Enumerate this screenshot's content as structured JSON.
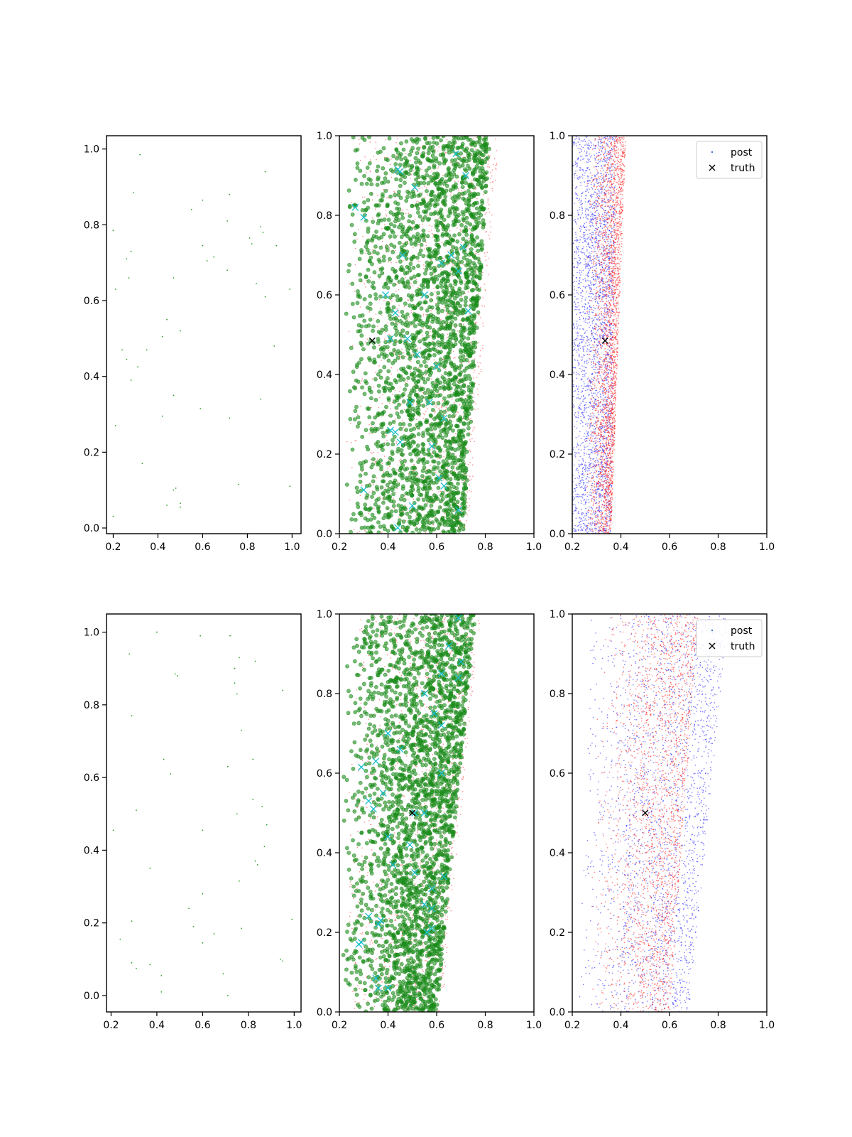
{
  "chart_data": [
    {
      "id": "r1c1",
      "type": "scatter",
      "xlim": [
        0.17,
        1.04
      ],
      "ylim": [
        -0.015,
        1.035
      ],
      "xticks": [
        "0.2",
        "0.4",
        "0.6",
        "0.8",
        "1.0"
      ],
      "yticks": [
        "0.0",
        "0.2",
        "0.4",
        "0.6",
        "0.8",
        "1.0"
      ],
      "xtick_values": [
        0.2,
        0.4,
        0.6,
        0.8,
        1.0
      ],
      "ytick_values": [
        0.0,
        0.2,
        0.4,
        0.6,
        0.8,
        1.0
      ],
      "series": [
        {
          "color": "#2ca02c",
          "marker": "dot",
          "points": [
            [
              0.32,
              0.985
            ],
            [
              0.29,
              0.885
            ],
            [
              0.6,
              0.865
            ],
            [
              0.72,
              0.88
            ],
            [
              0.88,
              0.94
            ],
            [
              0.2,
              0.785
            ],
            [
              0.55,
              0.84
            ],
            [
              0.71,
              0.81
            ],
            [
              0.81,
              0.765
            ],
            [
              0.86,
              0.795
            ],
            [
              0.87,
              0.78
            ],
            [
              0.93,
              0.745
            ],
            [
              0.28,
              0.73
            ],
            [
              0.26,
              0.71
            ],
            [
              0.6,
              0.745
            ],
            [
              0.65,
              0.715
            ],
            [
              0.62,
              0.705
            ],
            [
              0.71,
              0.68
            ],
            [
              0.82,
              0.75
            ],
            [
              0.27,
              0.66
            ],
            [
              0.47,
              0.66
            ],
            [
              0.21,
              0.63
            ],
            [
              0.84,
              0.645
            ],
            [
              0.88,
              0.61
            ],
            [
              0.99,
              0.63
            ],
            [
              0.44,
              0.55
            ],
            [
              0.42,
              0.505
            ],
            [
              0.5,
              0.52
            ],
            [
              0.24,
              0.47
            ],
            [
              0.35,
              0.47
            ],
            [
              0.26,
              0.445
            ],
            [
              0.31,
              0.425
            ],
            [
              0.92,
              0.48
            ],
            [
              0.28,
              0.39
            ],
            [
              0.47,
              0.35
            ],
            [
              0.59,
              0.315
            ],
            [
              0.86,
              0.34
            ],
            [
              0.21,
              0.27
            ],
            [
              0.42,
              0.295
            ],
            [
              0.72,
              0.29
            ],
            [
              0.33,
              0.17
            ],
            [
              0.47,
              0.1
            ],
            [
              0.48,
              0.105
            ],
            [
              0.76,
              0.115
            ],
            [
              0.99,
              0.11
            ],
            [
              0.44,
              0.06
            ],
            [
              0.5,
              0.065
            ],
            [
              0.5,
              0.055
            ],
            [
              0.2,
              0.03
            ]
          ]
        }
      ]
    },
    {
      "id": "r1c2",
      "type": "scatter",
      "xlim": [
        0.2,
        1.0
      ],
      "ylim": [
        0.0,
        1.0
      ],
      "xticks": [
        "0.2",
        "0.4",
        "0.6",
        "0.8",
        "1.0"
      ],
      "yticks": [
        "0.0",
        "0.2",
        "0.4",
        "0.6",
        "0.8",
        "1.0"
      ],
      "xtick_values": [
        0.2,
        0.4,
        0.6,
        0.8,
        1.0
      ],
      "ytick_values": [
        0.0,
        0.2,
        0.4,
        0.6,
        0.8,
        1.0
      ],
      "series": [
        {
          "color": "#ff4040",
          "marker": "dot-small",
          "cloud": {
            "count": 1400,
            "xmin_bottom": 0.22,
            "xmin_top": 0.24,
            "xmax_bottom": 0.73,
            "xmax_top": 0.86,
            "skew": 0.55,
            "seed": 11
          }
        },
        {
          "color": "#1a8c1a",
          "marker": "circle",
          "cloud": {
            "count": 2600,
            "xmin_bottom": 0.22,
            "xmin_top": 0.22,
            "xmax_bottom": 0.71,
            "xmax_top": 0.82,
            "skew": 0.6,
            "seed": 23
          }
        },
        {
          "color": "#17becf",
          "marker": "x",
          "points": [
            [
              0.265,
              0.82
            ],
            [
              0.3,
              0.795
            ],
            [
              0.44,
              0.915
            ],
            [
              0.45,
              0.91
            ],
            [
              0.68,
              0.955
            ],
            [
              0.72,
              0.9
            ],
            [
              0.51,
              0.87
            ],
            [
              0.46,
              0.7
            ],
            [
              0.62,
              0.68
            ],
            [
              0.66,
              0.7
            ],
            [
              0.69,
              0.66
            ],
            [
              0.71,
              0.72
            ],
            [
              0.73,
              0.56
            ],
            [
              0.43,
              0.555
            ],
            [
              0.55,
              0.6
            ],
            [
              0.41,
              0.49
            ],
            [
              0.48,
              0.49
            ],
            [
              0.52,
              0.45
            ],
            [
              0.6,
              0.42
            ],
            [
              0.49,
              0.33
            ],
            [
              0.57,
              0.33
            ],
            [
              0.63,
              0.29
            ],
            [
              0.41,
              0.26
            ],
            [
              0.43,
              0.255
            ],
            [
              0.45,
              0.23
            ],
            [
              0.58,
              0.22
            ],
            [
              0.61,
              0.14
            ],
            [
              0.63,
              0.12
            ],
            [
              0.3,
              0.11
            ],
            [
              0.44,
              0.015
            ],
            [
              0.69,
              0.06
            ],
            [
              0.5,
              0.07
            ],
            [
              0.39,
              0.6
            ]
          ]
        },
        {
          "color": "#000000",
          "marker": "x-truth",
          "points": [
            [
              0.335,
              0.485
            ]
          ]
        }
      ]
    },
    {
      "id": "r1c3",
      "type": "scatter",
      "xlim": [
        0.2,
        1.0
      ],
      "ylim": [
        0.0,
        1.0
      ],
      "xticks": [
        "0.2",
        "0.4",
        "0.6",
        "0.8",
        "1.0"
      ],
      "yticks": [
        "0.0",
        "0.2",
        "0.4",
        "0.6",
        "0.8",
        "1.0"
      ],
      "xtick_values": [
        0.2,
        0.4,
        0.6,
        0.8,
        1.0
      ],
      "ytick_values": [
        0.0,
        0.2,
        0.4,
        0.6,
        0.8,
        1.0
      ],
      "legend": {
        "placement": "upper-right",
        "entries": [
          "post",
          "truth"
        ],
        "colors": [
          "#3b6fd6",
          "#000000"
        ]
      },
      "series": [
        {
          "color": "#2020ff",
          "marker": "dot-small",
          "cloud": {
            "count": 2600,
            "xmin_bottom": 0.2,
            "xmin_top": 0.2,
            "xmax_bottom": 0.36,
            "xmax_top": 0.38,
            "skew": 0.2,
            "seed": 37
          }
        },
        {
          "color": "#ff2020",
          "marker": "dot-small",
          "cloud": {
            "count": 2600,
            "xmin_bottom": 0.25,
            "xmin_top": 0.26,
            "xmax_bottom": 0.36,
            "xmax_top": 0.42,
            "skew": 0.75,
            "seed": 41
          }
        },
        {
          "color": "#000000",
          "marker": "x-truth",
          "points": [
            [
              0.335,
              0.485
            ]
          ]
        }
      ]
    },
    {
      "id": "r2c1",
      "type": "scatter",
      "xlim": [
        0.18,
        1.03
      ],
      "ylim": [
        -0.045,
        1.05
      ],
      "xticks": [
        "0.2",
        "0.4",
        "0.6",
        "0.8",
        "1.0"
      ],
      "yticks": [
        "0.0",
        "0.2",
        "0.4",
        "0.6",
        "0.8",
        "1.0"
      ],
      "xtick_values": [
        0.2,
        0.4,
        0.6,
        0.8,
        1.0
      ],
      "ytick_values": [
        0.0,
        0.2,
        0.4,
        0.6,
        0.8,
        1.0
      ],
      "series": [
        {
          "color": "#2ca02c",
          "marker": "dot",
          "points": [
            [
              0.4,
              1.0
            ],
            [
              0.59,
              0.99
            ],
            [
              0.72,
              0.99
            ],
            [
              0.28,
              0.94
            ],
            [
              0.76,
              0.93
            ],
            [
              0.74,
              0.9
            ],
            [
              0.83,
              0.92
            ],
            [
              0.48,
              0.885
            ],
            [
              0.49,
              0.88
            ],
            [
              0.74,
              0.86
            ],
            [
              0.75,
              0.83
            ],
            [
              0.95,
              0.84
            ],
            [
              0.29,
              0.77
            ],
            [
              0.77,
              0.73
            ],
            [
              0.43,
              0.65
            ],
            [
              0.46,
              0.61
            ],
            [
              0.71,
              0.63
            ],
            [
              0.82,
              0.65
            ],
            [
              0.31,
              0.51
            ],
            [
              0.75,
              0.5
            ],
            [
              0.82,
              0.54
            ],
            [
              0.86,
              0.52
            ],
            [
              0.21,
              0.455
            ],
            [
              0.6,
              0.455
            ],
            [
              0.88,
              0.47
            ],
            [
              0.87,
              0.41
            ],
            [
              0.83,
              0.37
            ],
            [
              0.84,
              0.36
            ],
            [
              0.37,
              0.35
            ],
            [
              0.76,
              0.315
            ],
            [
              0.6,
              0.28
            ],
            [
              0.54,
              0.24
            ],
            [
              0.29,
              0.205
            ],
            [
              0.56,
              0.19
            ],
            [
              0.77,
              0.185
            ],
            [
              0.99,
              0.21
            ],
            [
              0.65,
              0.17
            ],
            [
              0.24,
              0.155
            ],
            [
              0.6,
              0.145
            ],
            [
              0.94,
              0.1
            ],
            [
              0.95,
              0.095
            ],
            [
              0.29,
              0.09
            ],
            [
              0.31,
              0.075
            ],
            [
              0.37,
              0.085
            ],
            [
              0.42,
              0.055
            ],
            [
              0.69,
              0.06
            ],
            [
              0.42,
              0.01
            ],
            [
              0.71,
              0.0
            ]
          ]
        }
      ]
    },
    {
      "id": "r2c2",
      "type": "scatter",
      "xlim": [
        0.2,
        1.0
      ],
      "ylim": [
        0.0,
        1.0
      ],
      "xticks": [
        "0.2",
        "0.4",
        "0.6",
        "0.8",
        "1.0"
      ],
      "yticks": [
        "0.0",
        "0.2",
        "0.4",
        "0.6",
        "0.8",
        "1.0"
      ],
      "xtick_values": [
        0.2,
        0.4,
        0.6,
        0.8,
        1.0
      ],
      "ytick_values": [
        0.0,
        0.2,
        0.4,
        0.6,
        0.8,
        1.0
      ],
      "series": [
        {
          "color": "#ff4040",
          "marker": "dot-small",
          "cloud": {
            "count": 1400,
            "xmin_bottom": 0.22,
            "xmin_top": 0.24,
            "xmax_bottom": 0.62,
            "xmax_top": 0.78,
            "skew": 0.55,
            "seed": 53
          }
        },
        {
          "color": "#1a8c1a",
          "marker": "circle",
          "cloud": {
            "count": 2600,
            "xmin_bottom": 0.21,
            "xmin_top": 0.22,
            "xmax_bottom": 0.6,
            "xmax_top": 0.76,
            "skew": 0.6,
            "seed": 67
          }
        },
        {
          "color": "#17becf",
          "marker": "x",
          "points": [
            [
              0.65,
              0.92
            ],
            [
              0.69,
              0.99
            ],
            [
              0.62,
              0.85
            ],
            [
              0.7,
              0.88
            ],
            [
              0.69,
              0.84
            ],
            [
              0.55,
              0.8
            ],
            [
              0.59,
              0.75
            ],
            [
              0.62,
              0.72
            ],
            [
              0.4,
              0.7
            ],
            [
              0.62,
              0.6
            ],
            [
              0.45,
              0.66
            ],
            [
              0.35,
              0.63
            ],
            [
              0.29,
              0.615
            ],
            [
              0.38,
              0.55
            ],
            [
              0.32,
              0.53
            ],
            [
              0.34,
              0.51
            ],
            [
              0.51,
              0.5
            ],
            [
              0.55,
              0.5
            ],
            [
              0.4,
              0.44
            ],
            [
              0.49,
              0.42
            ],
            [
              0.42,
              0.37
            ],
            [
              0.51,
              0.35
            ],
            [
              0.63,
              0.34
            ],
            [
              0.58,
              0.31
            ],
            [
              0.55,
              0.27
            ],
            [
              0.58,
              0.26
            ],
            [
              0.37,
              0.23
            ],
            [
              0.32,
              0.24
            ],
            [
              0.36,
              0.22
            ],
            [
              0.58,
              0.21
            ],
            [
              0.56,
              0.2
            ],
            [
              0.29,
              0.175
            ],
            [
              0.28,
              0.17
            ],
            [
              0.35,
              0.085
            ],
            [
              0.36,
              0.06
            ],
            [
              0.4,
              0.06
            ]
          ]
        },
        {
          "color": "#000000",
          "marker": "x-truth",
          "points": [
            [
              0.5,
              0.5
            ]
          ]
        }
      ]
    },
    {
      "id": "r2c3",
      "type": "scatter",
      "xlim": [
        0.2,
        1.0
      ],
      "ylim": [
        0.0,
        1.0
      ],
      "xticks": [
        "0.2",
        "0.4",
        "0.6",
        "0.8",
        "1.0"
      ],
      "yticks": [
        "0.0",
        "0.2",
        "0.4",
        "0.6",
        "0.8",
        "1.0"
      ],
      "xtick_values": [
        0.2,
        0.4,
        0.6,
        0.8,
        1.0
      ],
      "ytick_values": [
        0.0,
        0.2,
        0.4,
        0.6,
        0.8,
        1.0
      ],
      "legend": {
        "placement": "upper-right",
        "entries": [
          "post",
          "truth"
        ],
        "colors": [
          "#3b6fd6",
          "#000000"
        ]
      },
      "series": [
        {
          "color": "#2020ff",
          "marker": "dot-small",
          "cloud": {
            "count": 2200,
            "xmin_bottom": 0.22,
            "xmin_top": 0.25,
            "xmax_bottom": 0.68,
            "xmax_top": 0.84,
            "skew": 0.55,
            "seed": 79
          }
        },
        {
          "color": "#ff2020",
          "marker": "dot-small",
          "cloud": {
            "count": 2200,
            "xmin_bottom": 0.27,
            "xmin_top": 0.3,
            "xmax_bottom": 0.6,
            "xmax_top": 0.72,
            "skew": 0.7,
            "seed": 83
          }
        },
        {
          "color": "#000000",
          "marker": "x-truth",
          "points": [
            [
              0.5,
              0.5
            ]
          ]
        }
      ]
    }
  ]
}
